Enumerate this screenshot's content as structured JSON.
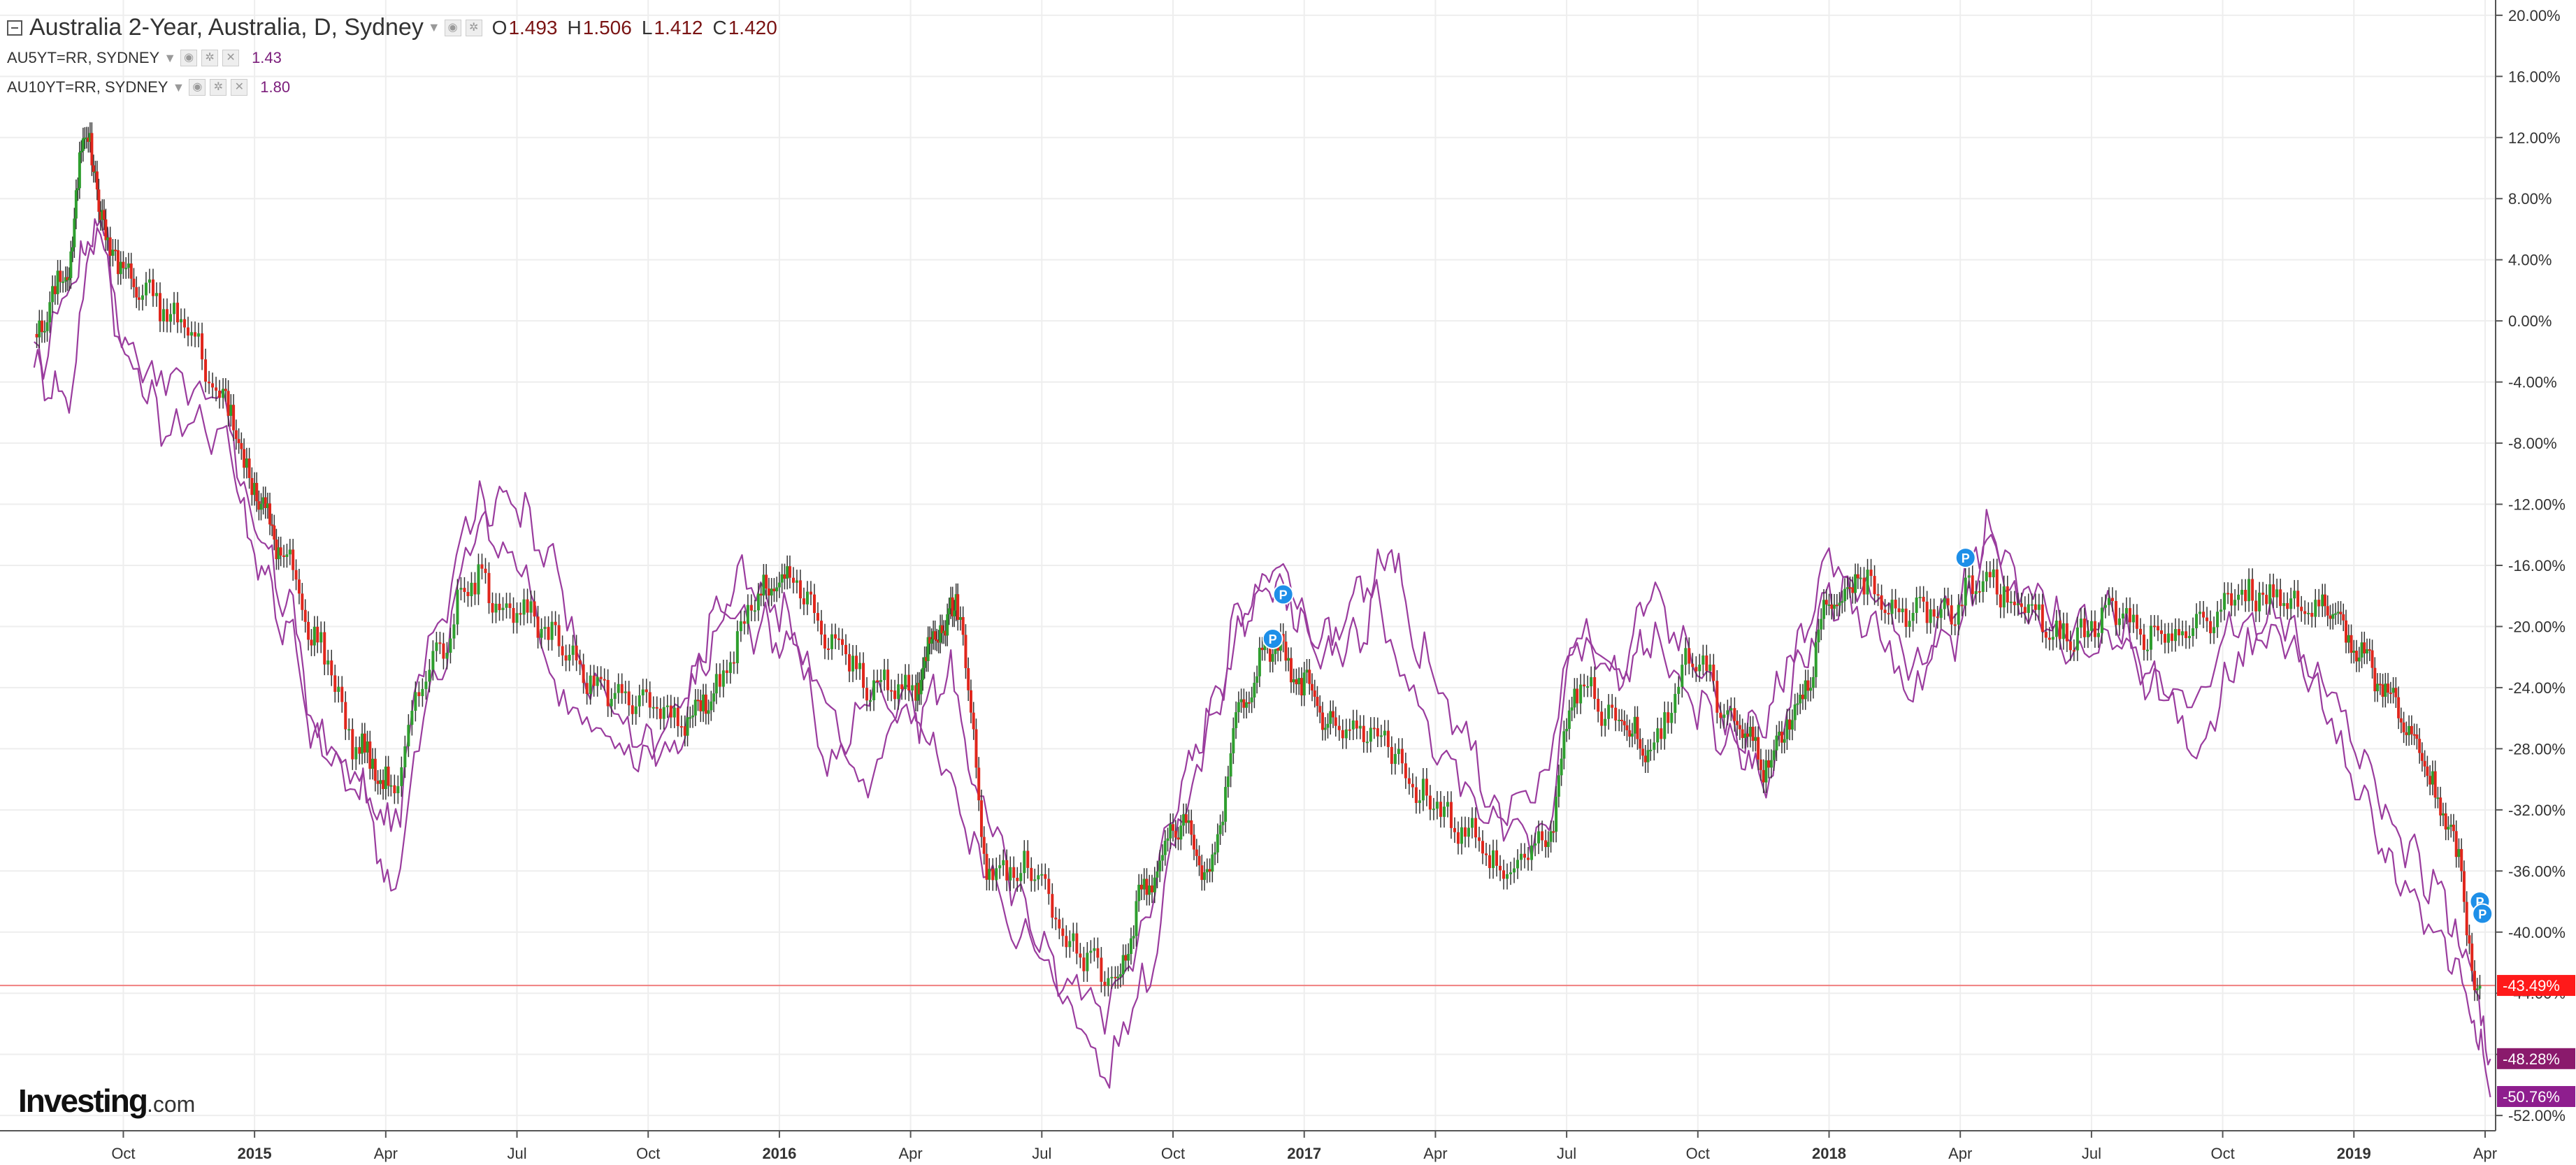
{
  "legend": {
    "main": {
      "title": "Australia 2-Year, Australia, D, Sydney",
      "open_label": "O",
      "open": "1.493",
      "high_label": "H",
      "high": "1.506",
      "low_label": "L",
      "low": "1.412",
      "close_label": "C",
      "close": "1.420"
    },
    "series": [
      {
        "title": "AU5YT=RR, SYDNEY",
        "value": "1.43"
      },
      {
        "title": "AU10YT=RR, SYDNEY",
        "value": "1.80"
      }
    ]
  },
  "logo": {
    "main": "Investing",
    "suffix": ".com"
  },
  "colors": {
    "up": "#2e9e2e",
    "down": "#e0261c",
    "line": "#9a3c9e",
    "price_line": "#f08080",
    "badge_main": "#ff1a1a",
    "badge_5y": "#8a1a6c",
    "badge_10y": "#8e1e8e",
    "marker": "#1e8fe8",
    "grid": "#eeeeee"
  },
  "chart_data": {
    "type": "candlestick",
    "percent_scale": true,
    "ylim": [
      -53,
      21
    ],
    "y_ticks": [
      "20.00%",
      "16.00%",
      "12.00%",
      "8.00%",
      "4.00%",
      "0.00%",
      "-4.00%",
      "-8.00%",
      "-12.00%",
      "-16.00%",
      "-20.00%",
      "-24.00%",
      "-28.00%",
      "-32.00%",
      "-36.00%",
      "-40.00%",
      "-44.00%",
      "-48.00%",
      "-52.00%"
    ],
    "x_ticks": [
      "Oct",
      "2015",
      "Apr",
      "Jul",
      "Oct",
      "2016",
      "Apr",
      "Jul",
      "Oct",
      "2017",
      "Apr",
      "Jul",
      "Oct",
      "2018",
      "Apr",
      "Jul",
      "Oct",
      "2019",
      "Apr"
    ],
    "x_ticks_bold": [
      "2015",
      "2016",
      "2017",
      "2018",
      "2019"
    ],
    "current_badges": [
      {
        "value": -43.49,
        "label": "-43.49%"
      },
      {
        "value": -48.28,
        "label": "-48.28%"
      },
      {
        "value": -50.76,
        "label": "-50.76%"
      }
    ],
    "markers": [
      {
        "x": 2016.96,
        "y": -17.9,
        "label": "P"
      },
      {
        "x": 2016.94,
        "y": -20.8,
        "label": "P"
      },
      {
        "x": 2018.26,
        "y": -15.5,
        "label": "P"
      },
      {
        "x": 2019.24,
        "y": -38.0,
        "label": "P"
      },
      {
        "x": 2019.245,
        "y": -38.8,
        "label": "P"
      }
    ],
    "series": [
      {
        "name": "Australia 2-Year",
        "style": "candles",
        "points": [
          [
            2014.58,
            -1.0
          ],
          [
            2014.64,
            3.0
          ],
          [
            2014.68,
            12.5
          ],
          [
            2014.72,
            5.0
          ],
          [
            2014.78,
            2.0
          ],
          [
            2014.86,
            0.0
          ],
          [
            2014.94,
            -5.0
          ],
          [
            2015.0,
            -11.0
          ],
          [
            2015.05,
            -15.0
          ],
          [
            2015.12,
            -21.0
          ],
          [
            2015.2,
            -28.0
          ],
          [
            2015.26,
            -30.5
          ],
          [
            2015.34,
            -22.0
          ],
          [
            2015.42,
            -17.0
          ],
          [
            2015.5,
            -19.0
          ],
          [
            2015.58,
            -21.0
          ],
          [
            2015.66,
            -24.0
          ],
          [
            2015.74,
            -25.0
          ],
          [
            2015.82,
            -26.0
          ],
          [
            2015.88,
            -24.0
          ],
          [
            2015.96,
            -18.0
          ],
          [
            2016.02,
            -17.0
          ],
          [
            2016.1,
            -21.0
          ],
          [
            2016.18,
            -24.0
          ],
          [
            2016.26,
            -24.0
          ],
          [
            2016.3,
            -20.0
          ],
          [
            2016.34,
            -19.0
          ],
          [
            2016.4,
            -36.0
          ],
          [
            2016.48,
            -36.0
          ],
          [
            2016.56,
            -41.0
          ],
          [
            2016.64,
            -43.0
          ],
          [
            2016.7,
            -37.0
          ],
          [
            2016.76,
            -33.0
          ],
          [
            2016.82,
            -36.0
          ],
          [
            2016.88,
            -25.0
          ],
          [
            2016.94,
            -21.0
          ],
          [
            2017.0,
            -24.0
          ],
          [
            2017.06,
            -27.0
          ],
          [
            2017.14,
            -27.0
          ],
          [
            2017.22,
            -31.0
          ],
          [
            2017.3,
            -33.0
          ],
          [
            2017.38,
            -36.0
          ],
          [
            2017.46,
            -34.0
          ],
          [
            2017.52,
            -24.0
          ],
          [
            2017.6,
            -26.0
          ],
          [
            2017.66,
            -28.0
          ],
          [
            2017.74,
            -22.0
          ],
          [
            2017.82,
            -26.0
          ],
          [
            2017.88,
            -29.0
          ],
          [
            2017.94,
            -25.0
          ],
          [
            2018.0,
            -19.0
          ],
          [
            2018.06,
            -17.0
          ],
          [
            2018.14,
            -19.0
          ],
          [
            2018.22,
            -19.0
          ],
          [
            2018.3,
            -17.0
          ],
          [
            2018.38,
            -19.0
          ],
          [
            2018.46,
            -21.0
          ],
          [
            2018.54,
            -19.0
          ],
          [
            2018.62,
            -21.0
          ],
          [
            2018.7,
            -20.0
          ],
          [
            2018.78,
            -18.0
          ],
          [
            2018.86,
            -18.0
          ],
          [
            2018.94,
            -19.0
          ],
          [
            2019.0,
            -21.0
          ],
          [
            2019.06,
            -24.0
          ],
          [
            2019.12,
            -28.0
          ],
          [
            2019.18,
            -33.0
          ],
          [
            2019.24,
            -43.5
          ]
        ]
      },
      {
        "name": "AU5YT=RR",
        "style": "line",
        "points": [
          [
            2014.58,
            -3.0
          ],
          [
            2014.66,
            3.0
          ],
          [
            2014.7,
            7.0
          ],
          [
            2014.76,
            -2.0
          ],
          [
            2014.84,
            -4.0
          ],
          [
            2014.94,
            -5.0
          ],
          [
            2015.0,
            -14.0
          ],
          [
            2015.06,
            -18.0
          ],
          [
            2015.12,
            -27.0
          ],
          [
            2015.2,
            -31.0
          ],
          [
            2015.26,
            -33.0
          ],
          [
            2015.34,
            -20.0
          ],
          [
            2015.42,
            -12.0
          ],
          [
            2015.5,
            -16.0
          ],
          [
            2015.58,
            -24.0
          ],
          [
            2015.66,
            -27.0
          ],
          [
            2015.74,
            -29.0
          ],
          [
            2015.82,
            -25.0
          ],
          [
            2015.88,
            -19.0
          ],
          [
            2015.96,
            -20.0
          ],
          [
            2016.02,
            -21.0
          ],
          [
            2016.1,
            -29.0
          ],
          [
            2016.18,
            -24.0
          ],
          [
            2016.26,
            -26.0
          ],
          [
            2016.32,
            -23.0
          ],
          [
            2016.38,
            -31.0
          ],
          [
            2016.46,
            -38.0
          ],
          [
            2016.54,
            -43.0
          ],
          [
            2016.62,
            -45.0
          ],
          [
            2016.68,
            -41.0
          ],
          [
            2016.76,
            -31.0
          ],
          [
            2016.82,
            -26.0
          ],
          [
            2016.88,
            -19.0
          ],
          [
            2016.94,
            -17.0
          ],
          [
            2017.0,
            -20.0
          ],
          [
            2017.06,
            -21.0
          ],
          [
            2017.12,
            -17.0
          ],
          [
            2017.2,
            -24.0
          ],
          [
            2017.28,
            -29.0
          ],
          [
            2017.36,
            -32.0
          ],
          [
            2017.44,
            -31.0
          ],
          [
            2017.52,
            -21.0
          ],
          [
            2017.6,
            -23.0
          ],
          [
            2017.66,
            -21.0
          ],
          [
            2017.74,
            -25.0
          ],
          [
            2017.82,
            -28.0
          ],
          [
            2017.88,
            -30.0
          ],
          [
            2017.94,
            -23.0
          ],
          [
            2018.0,
            -18.0
          ],
          [
            2018.08,
            -18.0
          ],
          [
            2018.16,
            -22.0
          ],
          [
            2018.24,
            -21.0
          ],
          [
            2018.3,
            -15.0
          ],
          [
            2018.38,
            -19.0
          ],
          [
            2018.46,
            -22.0
          ],
          [
            2018.54,
            -21.0
          ],
          [
            2018.62,
            -24.0
          ],
          [
            2018.7,
            -24.0
          ],
          [
            2018.78,
            -19.0
          ],
          [
            2018.86,
            -21.0
          ],
          [
            2018.94,
            -23.0
          ],
          [
            2019.02,
            -29.0
          ],
          [
            2019.08,
            -34.0
          ],
          [
            2019.16,
            -37.0
          ],
          [
            2019.22,
            -42.0
          ],
          [
            2019.26,
            -48.3
          ]
        ]
      },
      {
        "name": "AU10YT=RR",
        "style": "line",
        "points": [
          [
            2014.58,
            -3.0
          ],
          [
            2014.64,
            -5.0
          ],
          [
            2014.7,
            6.0
          ],
          [
            2014.76,
            -3.0
          ],
          [
            2014.84,
            -7.0
          ],
          [
            2014.94,
            -7.0
          ],
          [
            2015.0,
            -15.0
          ],
          [
            2015.06,
            -20.0
          ],
          [
            2015.12,
            -28.0
          ],
          [
            2015.2,
            -30.0
          ],
          [
            2015.26,
            -37.0
          ],
          [
            2015.34,
            -24.0
          ],
          [
            2015.42,
            -14.0
          ],
          [
            2015.48,
            -11.0
          ],
          [
            2015.56,
            -15.0
          ],
          [
            2015.64,
            -24.0
          ],
          [
            2015.72,
            -27.0
          ],
          [
            2015.8,
            -28.0
          ],
          [
            2015.86,
            -22.0
          ],
          [
            2015.92,
            -17.0
          ],
          [
            2016.0,
            -19.0
          ],
          [
            2016.08,
            -24.0
          ],
          [
            2016.16,
            -31.0
          ],
          [
            2016.24,
            -25.0
          ],
          [
            2016.3,
            -28.0
          ],
          [
            2016.38,
            -35.0
          ],
          [
            2016.46,
            -40.0
          ],
          [
            2016.54,
            -44.0
          ],
          [
            2016.62,
            -49.0
          ],
          [
            2016.7,
            -43.0
          ],
          [
            2016.76,
            -33.0
          ],
          [
            2016.84,
            -24.0
          ],
          [
            2016.9,
            -18.0
          ],
          [
            2016.96,
            -16.0
          ],
          [
            2017.04,
            -22.0
          ],
          [
            2017.1,
            -21.0
          ],
          [
            2017.16,
            -15.0
          ],
          [
            2017.22,
            -22.0
          ],
          [
            2017.3,
            -27.0
          ],
          [
            2017.38,
            -33.0
          ],
          [
            2017.46,
            -34.0
          ],
          [
            2017.52,
            -20.0
          ],
          [
            2017.6,
            -23.0
          ],
          [
            2017.66,
            -18.0
          ],
          [
            2017.74,
            -22.0
          ],
          [
            2017.82,
            -27.0
          ],
          [
            2017.88,
            -26.0
          ],
          [
            2017.94,
            -21.0
          ],
          [
            2018.0,
            -16.0
          ],
          [
            2018.08,
            -20.0
          ],
          [
            2018.16,
            -25.0
          ],
          [
            2018.24,
            -18.0
          ],
          [
            2018.3,
            -14.0
          ],
          [
            2018.38,
            -18.0
          ],
          [
            2018.46,
            -20.0
          ],
          [
            2018.54,
            -19.0
          ],
          [
            2018.62,
            -24.0
          ],
          [
            2018.7,
            -28.0
          ],
          [
            2018.78,
            -22.0
          ],
          [
            2018.86,
            -19.0
          ],
          [
            2018.94,
            -25.0
          ],
          [
            2019.02,
            -32.0
          ],
          [
            2019.08,
            -36.0
          ],
          [
            2019.16,
            -40.0
          ],
          [
            2019.22,
            -44.0
          ],
          [
            2019.26,
            -50.8
          ]
        ]
      }
    ]
  }
}
